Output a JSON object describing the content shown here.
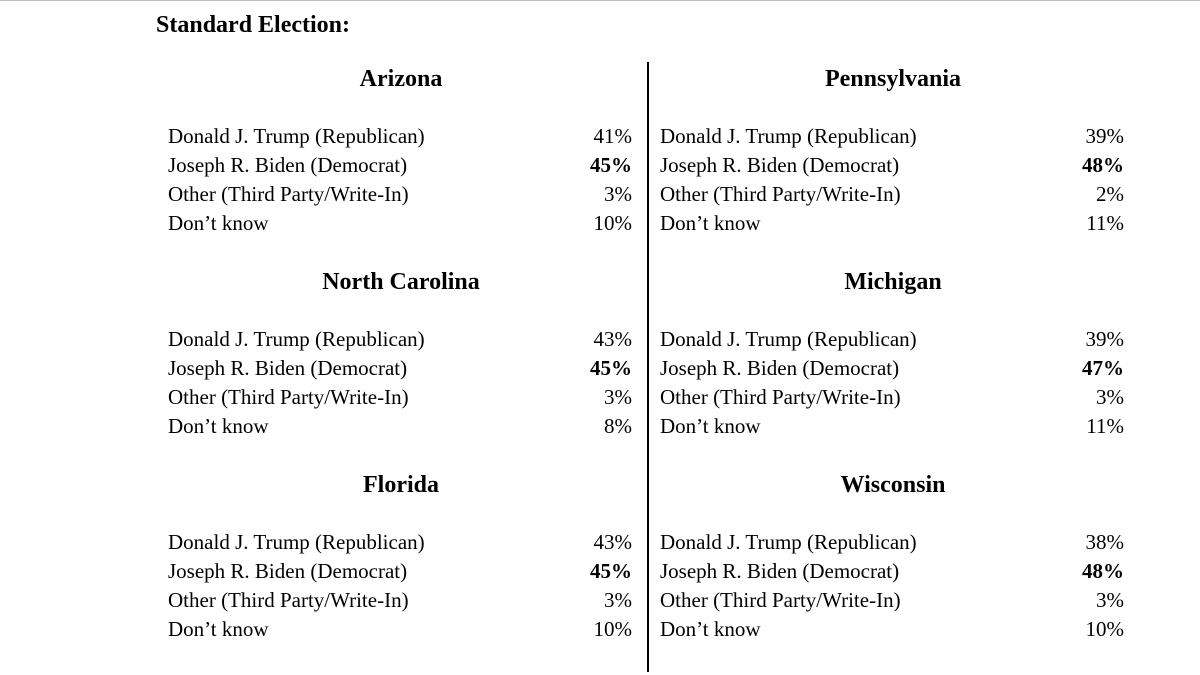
{
  "title": "Standard Election:",
  "states": [
    {
      "name": "Arizona",
      "results": [
        {
          "candidate": "Donald J. Trump (Republican)",
          "pct": "41%",
          "leader": false
        },
        {
          "candidate": "Joseph R. Biden (Democrat)",
          "pct": "45%",
          "leader": true
        },
        {
          "candidate": "Other (Third Party/Write-In)",
          "pct": "3%",
          "leader": false
        },
        {
          "candidate": "Don’t know",
          "pct": "10%",
          "leader": false
        }
      ]
    },
    {
      "name": "Pennsylvania",
      "results": [
        {
          "candidate": "Donald J. Trump (Republican)",
          "pct": "39%",
          "leader": false
        },
        {
          "candidate": "Joseph R. Biden (Democrat)",
          "pct": "48%",
          "leader": true
        },
        {
          "candidate": "Other (Third Party/Write-In)",
          "pct": "2%",
          "leader": false
        },
        {
          "candidate": "Don’t know",
          "pct": "11%",
          "leader": false
        }
      ]
    },
    {
      "name": "North Carolina",
      "results": [
        {
          "candidate": "Donald J. Trump (Republican)",
          "pct": "43%",
          "leader": false
        },
        {
          "candidate": "Joseph R. Biden (Democrat)",
          "pct": "45%",
          "leader": true
        },
        {
          "candidate": "Other (Third Party/Write-In)",
          "pct": "3%",
          "leader": false
        },
        {
          "candidate": "Don’t know",
          "pct": "8%",
          "leader": false
        }
      ]
    },
    {
      "name": "Michigan",
      "results": [
        {
          "candidate": "Donald J. Trump (Republican)",
          "pct": "39%",
          "leader": false
        },
        {
          "candidate": "Joseph R. Biden (Democrat)",
          "pct": "47%",
          "leader": true
        },
        {
          "candidate": "Other (Third Party/Write-In)",
          "pct": "3%",
          "leader": false
        },
        {
          "candidate": "Don’t know",
          "pct": "11%",
          "leader": false
        }
      ]
    },
    {
      "name": "Florida",
      "results": [
        {
          "candidate": "Donald J. Trump (Republican)",
          "pct": "43%",
          "leader": false
        },
        {
          "candidate": "Joseph R. Biden (Democrat)",
          "pct": "45%",
          "leader": true
        },
        {
          "candidate": "Other (Third Party/Write-In)",
          "pct": "3%",
          "leader": false
        },
        {
          "candidate": "Don’t know",
          "pct": "10%",
          "leader": false
        }
      ]
    },
    {
      "name": "Wisconsin",
      "results": [
        {
          "candidate": "Donald J. Trump (Republican)",
          "pct": "38%",
          "leader": false
        },
        {
          "candidate": "Joseph R. Biden (Democrat)",
          "pct": "48%",
          "leader": true
        },
        {
          "candidate": "Other (Third Party/Write-In)",
          "pct": "3%",
          "leader": false
        },
        {
          "candidate": "Don’t know",
          "pct": "10%",
          "leader": false
        }
      ]
    }
  ]
}
